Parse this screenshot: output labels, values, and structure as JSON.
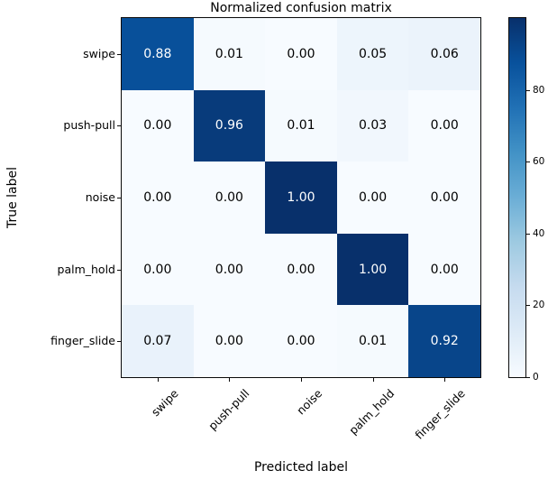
{
  "chart_data": {
    "type": "heatmap",
    "title": "Normalized confusion matrix",
    "xlabel": "Predicted label",
    "ylabel": "True label",
    "x_categories": [
      "swipe",
      "push-pull",
      "noise",
      "palm_hold",
      "finger_slide"
    ],
    "y_categories": [
      "swipe",
      "push-pull",
      "noise",
      "palm_hold",
      "finger_slide"
    ],
    "matrix": [
      [
        0.88,
        0.01,
        0.0,
        0.05,
        0.06
      ],
      [
        0.0,
        0.96,
        0.01,
        0.03,
        0.0
      ],
      [
        0.0,
        0.0,
        1.0,
        0.0,
        0.0
      ],
      [
        0.0,
        0.0,
        0.0,
        1.0,
        0.0
      ],
      [
        0.07,
        0.0,
        0.0,
        0.01,
        0.92
      ]
    ],
    "value_decimals": 2,
    "x_tick_rotation_deg": 45,
    "grid": false,
    "colorbar": {
      "min": 0,
      "max": 100,
      "ticks": [
        0,
        20,
        40,
        60,
        80
      ],
      "position": "right"
    },
    "colormap": {
      "name": "Blues",
      "stops": [
        [
          0.0,
          "#f7fbff"
        ],
        [
          0.125,
          "#deebf7"
        ],
        [
          0.25,
          "#c6dbef"
        ],
        [
          0.375,
          "#9ecae1"
        ],
        [
          0.5,
          "#6baed6"
        ],
        [
          0.625,
          "#4292c6"
        ],
        [
          0.75,
          "#2171b5"
        ],
        [
          0.875,
          "#08519c"
        ],
        [
          1.0,
          "#08306b"
        ]
      ]
    },
    "colors": {
      "cell_text_dark_bg": "#ffffff",
      "cell_text_light_bg": "#000000",
      "axis": "#0a0a0a",
      "background": "#ffffff"
    },
    "text_color_threshold": 0.5
  }
}
